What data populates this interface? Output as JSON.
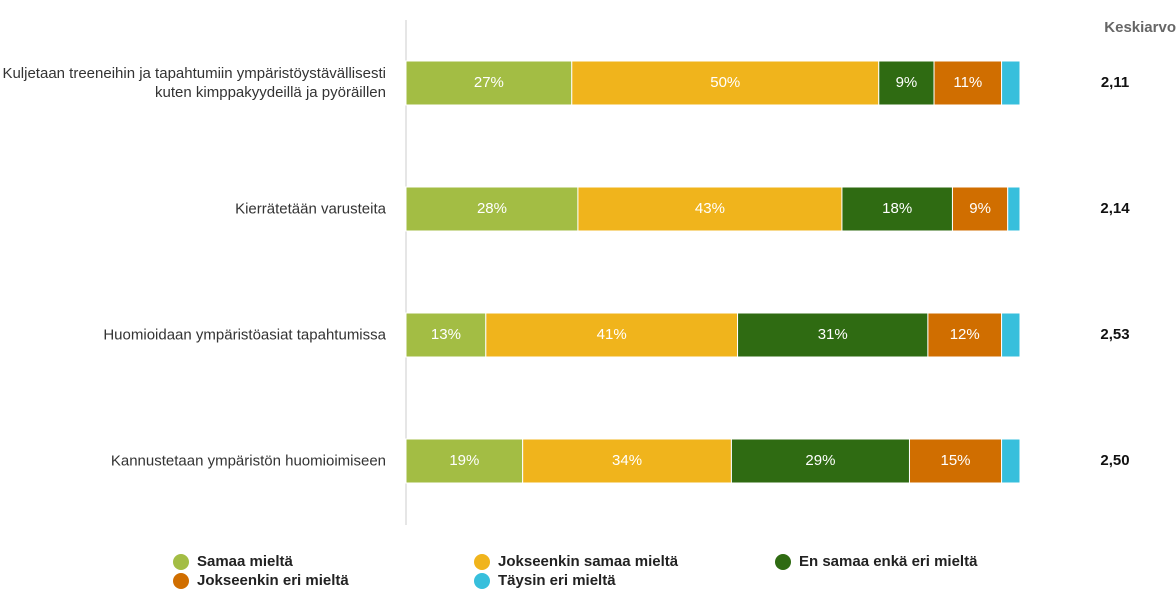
{
  "chart_data": {
    "type": "stacked-bar-horizontal",
    "categories": [
      "Kuljetaan treeneihin ja tapahtumiin ympäristöystävällisesti kuten kimppakyydeillä ja pyöräillen",
      "Kierrätetään varusteita",
      "Huomioidaan ympäristöasiat tapahtumissa",
      "Kannustetaan ympäristön huomioimiseen"
    ],
    "xlim": [
      0,
      100
    ],
    "series": [
      {
        "name": "Samaa mieltä",
        "color": "#a3bd44",
        "values": [
          27,
          28,
          13,
          19
        ],
        "value_labels": [
          "27%",
          "28%",
          "13%",
          "19%"
        ]
      },
      {
        "name": "Jokseenkin samaa mieltä",
        "color": "#f0b41c",
        "values": [
          50,
          43,
          41,
          34
        ],
        "value_labels": [
          "50%",
          "43%",
          "41%",
          "34%"
        ]
      },
      {
        "name": "En samaa enkä eri mieltä",
        "color": "#2f6b12",
        "values": [
          9,
          18,
          31,
          29
        ],
        "value_labels": [
          "9%",
          "18%",
          "31%",
          "29%"
        ]
      },
      {
        "name": "Jokseenkin eri mieltä",
        "color": "#d06e00",
        "values": [
          11,
          9,
          12,
          15
        ],
        "value_labels": [
          "11%",
          "9%",
          "12%",
          "15%"
        ]
      },
      {
        "name": "Täysin eri mieltä",
        "color": "#37bfdc",
        "values": [
          3,
          2,
          3,
          3
        ]
      }
    ],
    "average": {
      "label": "Keskiarvo",
      "values": [
        2.11,
        2.14,
        2.53,
        2.5
      ],
      "value_labels": [
        "2,11",
        "2,14",
        "2,53",
        "2,50"
      ]
    }
  }
}
